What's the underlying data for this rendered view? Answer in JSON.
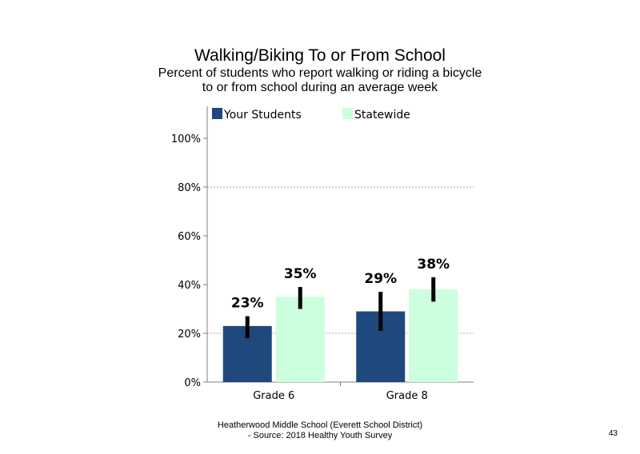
{
  "chart_data": {
    "type": "bar",
    "title": "Walking/Biking  To or From School",
    "subtitle_lines": [
      "Percent of students  who report walking  or riding a bicycle",
      "to or from school during an average week"
    ],
    "categories": [
      "Grade 6",
      "Grade 8"
    ],
    "series": [
      {
        "name": "Your Students",
        "color": "#1f497d",
        "values": [
          23,
          29
        ],
        "error_low": [
          18,
          21
        ],
        "error_high": [
          27,
          37
        ],
        "labels": [
          "23%",
          "29%"
        ]
      },
      {
        "name": "Statewide",
        "color": "#ccffdd",
        "values": [
          35,
          38
        ],
        "error_low": [
          30,
          33
        ],
        "error_high": [
          39,
          43
        ],
        "labels": [
          "35%",
          "38%"
        ]
      }
    ],
    "ylim": [
      0,
      110
    ],
    "yticks": [
      0,
      20,
      40,
      60,
      80,
      100
    ],
    "ytick_labels": [
      "0%",
      "20%",
      "40%",
      "60%",
      "80%",
      "100%"
    ],
    "grid": "dotted horizontal at 20% and 80%",
    "legend_position": "top",
    "xlabel": "",
    "ylabel": ""
  },
  "footer": {
    "line1": "Heatherwood Middle School (Everett School District)",
    "line2": "- Source: 2018 Healthy  Youth Survey",
    "page_number": "43"
  }
}
